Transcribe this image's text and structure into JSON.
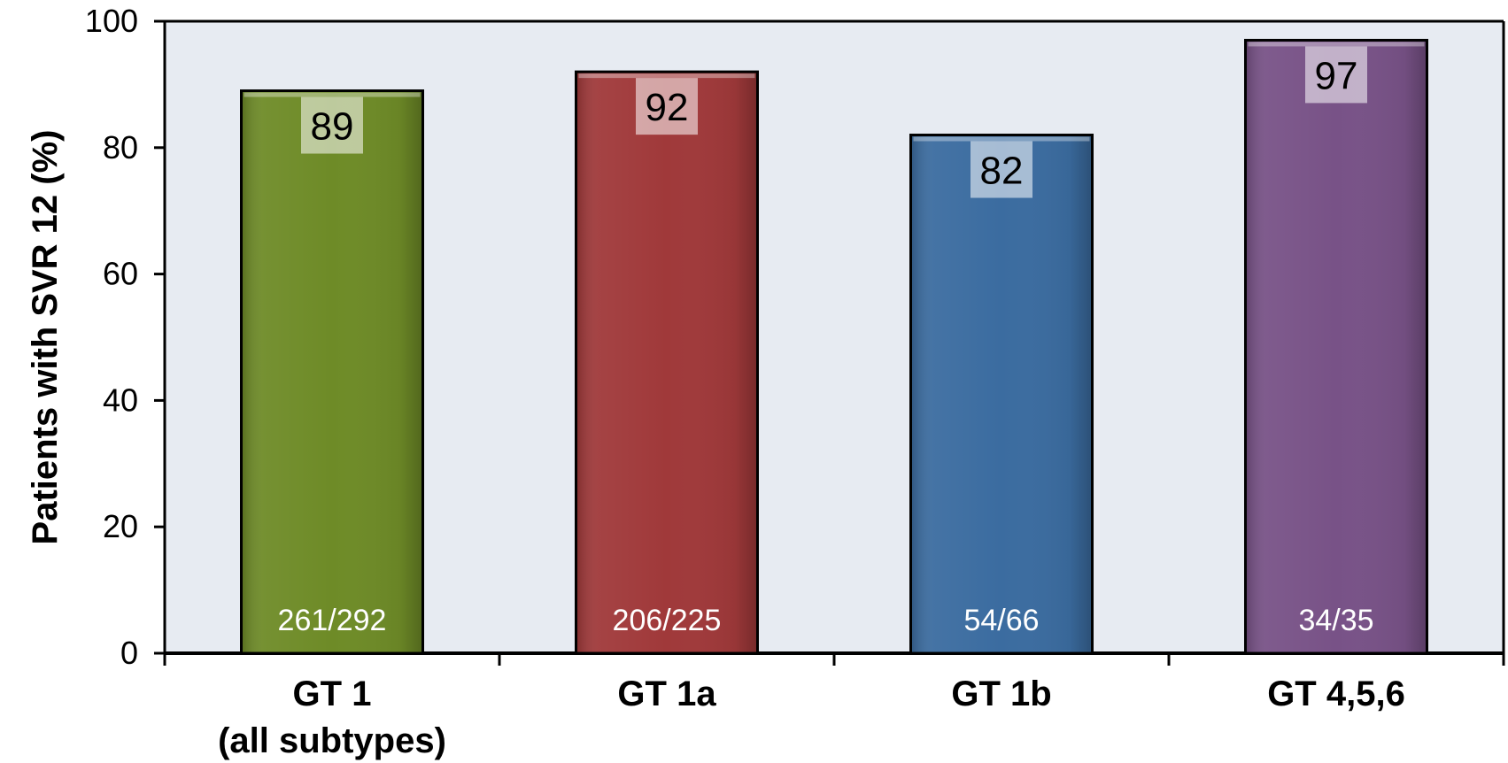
{
  "chart_data": {
    "type": "bar",
    "title": "",
    "xlabel": "",
    "ylabel": "Patients with SVR 12 (%)",
    "ylim": [
      0,
      100
    ],
    "yticks": [
      0,
      20,
      40,
      60,
      80,
      100
    ],
    "grid": false,
    "legend": "none",
    "categories": [
      [
        "GT 1",
        "(all subtypes)"
      ],
      [
        "GT 1a"
      ],
      [
        "GT 1b"
      ],
      [
        "GT 4,5,6"
      ]
    ],
    "values": [
      89,
      92,
      82,
      97
    ],
    "value_labels": [
      "89",
      "92",
      "82",
      "97"
    ],
    "ratios": [
      "261/292",
      "206/225",
      "54/66",
      "34/35"
    ],
    "colors": [
      "#6e8b27",
      "#a0393a",
      "#3b6ca0",
      "#785287"
    ],
    "plot_background": "#e7ebf2"
  }
}
